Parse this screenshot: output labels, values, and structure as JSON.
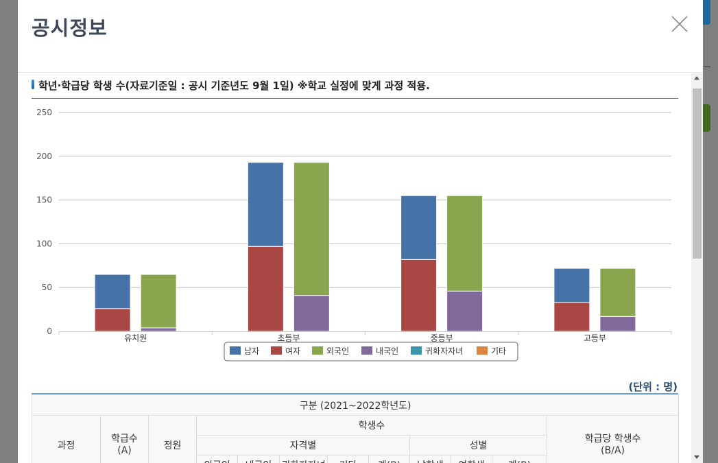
{
  "modal": {
    "title": "공시정보",
    "section_title": "학년·학급당 학생 수(자료기준일 : 공시 기준년도 9월 1일) ※학교 실정에 맞게 과정 적용.",
    "unit_label": "(단위 : 명)"
  },
  "chart_data": {
    "type": "bar",
    "stacked": true,
    "categories": [
      "유치원",
      "초등부",
      "중등부",
      "고등부"
    ],
    "yticks": [
      "250",
      "200",
      "150",
      "100",
      "50",
      "0"
    ],
    "ylim": [
      0,
      250
    ],
    "grid": true,
    "legend_position": "bottom",
    "stacks": [
      {
        "stack": "gender",
        "series": [
          {
            "name": "여자",
            "color": "#aa4643",
            "values": [
              26,
              97,
              82,
              33
            ]
          },
          {
            "name": "남자",
            "color": "#4572a7",
            "values": [
              39,
              96,
              73,
              39
            ]
          }
        ]
      },
      {
        "stack": "qualification",
        "series": [
          {
            "name": "내국인",
            "color": "#80699b",
            "values": [
              4,
              41,
              46,
              17
            ]
          },
          {
            "name": "외국인",
            "color": "#89a54e",
            "values": [
              61,
              152,
              109,
              55
            ]
          }
        ]
      }
    ],
    "legend": [
      {
        "label": "남자",
        "color": "#4572a7"
      },
      {
        "label": "여자",
        "color": "#aa4643"
      },
      {
        "label": "외국인",
        "color": "#89a54e"
      },
      {
        "label": "내국인",
        "color": "#80699b"
      },
      {
        "label": "귀화자자녀",
        "color": "#3d96ae"
      },
      {
        "label": "기타",
        "color": "#db843d"
      }
    ]
  },
  "table": {
    "caption_header": "구분 (2021~2022학년도)",
    "col_course": "과정",
    "col_classes": "학급수\n(A)",
    "col_capacity": "정원",
    "col_students": "학생수",
    "col_by_qualification": "자격별",
    "col_by_gender": "성별",
    "col_per_class": "학급당 학생수\n(B/A)",
    "sub_headers": [
      "외국인",
      "내국인",
      "귀화자자녀",
      "기타",
      "계(B)",
      "남학생",
      "여학생",
      "계(B)"
    ]
  }
}
